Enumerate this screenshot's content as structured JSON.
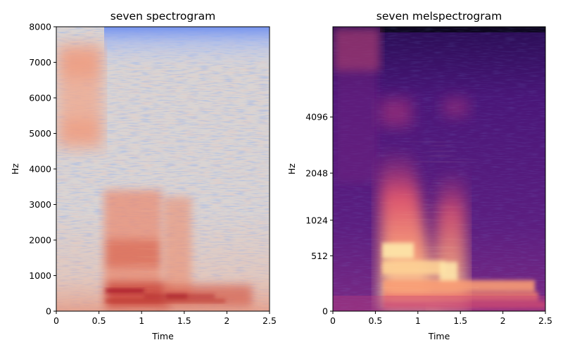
{
  "chart_data": [
    {
      "type": "heatmap",
      "title": "seven spectrogram",
      "xlabel": "Time",
      "ylabel": "Hz",
      "xlim": [
        0,
        2.5
      ],
      "ylim": [
        0,
        8000
      ],
      "x_ticks": [
        {
          "value": 0,
          "label": "0"
        },
        {
          "value": 0.5,
          "label": "0.5"
        },
        {
          "value": 1,
          "label": "1"
        },
        {
          "value": 1.5,
          "label": "1.5"
        },
        {
          "value": 2,
          "label": "2"
        },
        {
          "value": 2.5,
          "label": "2.5"
        }
      ],
      "y_ticks": [
        {
          "value": 0,
          "label": "0"
        },
        {
          "value": 1000,
          "label": "1000"
        },
        {
          "value": 2000,
          "label": "2000"
        },
        {
          "value": 3000,
          "label": "3000"
        },
        {
          "value": 4000,
          "label": "4000"
        },
        {
          "value": 5000,
          "label": "5000"
        },
        {
          "value": 6000,
          "label": "6000"
        },
        {
          "value": 7000,
          "label": "7000"
        },
        {
          "value": 8000,
          "label": "8000"
        }
      ],
      "colormap": "coolwarm",
      "y_scale": "linear"
    },
    {
      "type": "heatmap",
      "title": "seven melspectrogram",
      "xlabel": "Time",
      "ylabel": "Hz",
      "xlim": [
        0,
        2.5
      ],
      "x_ticks": [
        {
          "value": 0,
          "label": "0"
        },
        {
          "value": 0.5,
          "label": "0.5"
        },
        {
          "value": 1,
          "label": "1"
        },
        {
          "value": 1.5,
          "label": "1.5"
        },
        {
          "value": 2,
          "label": "2"
        },
        {
          "value": 2.5,
          "label": "2.5"
        }
      ],
      "y_ticks": [
        {
          "value": 0,
          "label": "0"
        },
        {
          "value": 512,
          "label": "512"
        },
        {
          "value": 1024,
          "label": "1024"
        },
        {
          "value": 2048,
          "label": "2048"
        },
        {
          "value": 4096,
          "label": "4096"
        }
      ],
      "colormap": "magma",
      "y_scale": "mel"
    }
  ]
}
